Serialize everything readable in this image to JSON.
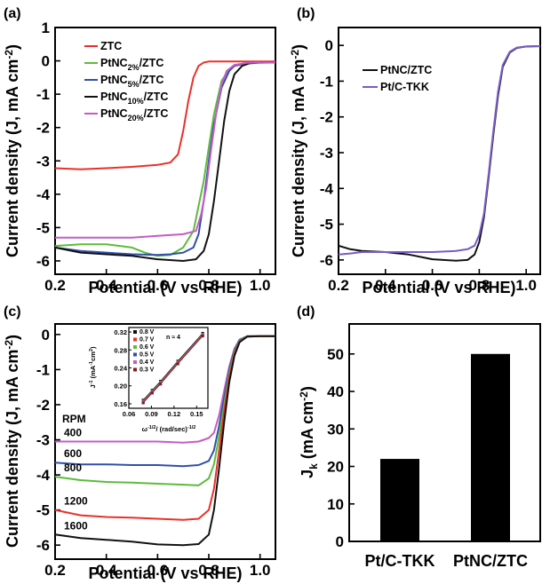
{
  "chart_data": [
    {
      "panel": "(a)",
      "type": "line",
      "xlabel": "Potential (V vs RHE)",
      "ylabel": "Current density (J, mA cm",
      "ylabel_sup": "-2",
      "ylabel_end": ")",
      "xlim": [
        0.2,
        1.06
      ],
      "ylim": [
        -6.4,
        1.0
      ],
      "xticks": [
        "0.2",
        "0.4",
        "0.6",
        "0.8",
        "1.0"
      ],
      "yticks": [
        "1",
        "0",
        "-1",
        "-2",
        "-3",
        "-4",
        "-5",
        "-6"
      ],
      "legend": "top-left",
      "series": [
        {
          "name": "ZTC",
          "label": "ZTC",
          "sub": "",
          "color": "#e8312a",
          "x": [
            0.2,
            0.3,
            0.4,
            0.5,
            0.6,
            0.65,
            0.68,
            0.7,
            0.72,
            0.74,
            0.76,
            0.78,
            0.8,
            0.85,
            0.9,
            1.0,
            1.06
          ],
          "y": [
            -3.22,
            -3.25,
            -3.22,
            -3.18,
            -3.12,
            -3.05,
            -2.8,
            -2.1,
            -1.2,
            -0.5,
            -0.15,
            -0.05,
            -0.02,
            -0.02,
            -0.02,
            -0.02,
            -0.02
          ]
        },
        {
          "name": "PtNC2%/ZTC",
          "label": "PtNC",
          "sub": "2%",
          "tail": "/ZTC",
          "color": "#5dbb3a",
          "x": [
            0.2,
            0.3,
            0.4,
            0.5,
            0.55,
            0.6,
            0.65,
            0.7,
            0.74,
            0.78,
            0.8,
            0.82,
            0.85,
            0.88,
            0.9,
            0.95,
            1.0,
            1.06
          ],
          "y": [
            -5.55,
            -5.5,
            -5.5,
            -5.6,
            -5.75,
            -5.85,
            -5.82,
            -5.6,
            -5.1,
            -3.6,
            -2.6,
            -1.6,
            -0.6,
            -0.25,
            -0.15,
            -0.08,
            -0.06,
            -0.05
          ]
        },
        {
          "name": "PtNC5%/ZTC",
          "label": "PtNC",
          "sub": "5%",
          "tail": "/ZTC",
          "color": "#3050a8",
          "x": [
            0.2,
            0.3,
            0.4,
            0.5,
            0.6,
            0.65,
            0.7,
            0.74,
            0.76,
            0.78,
            0.8,
            0.82,
            0.85,
            0.88,
            0.9,
            0.95,
            1.0,
            1.06
          ],
          "y": [
            -5.6,
            -5.7,
            -5.75,
            -5.8,
            -5.82,
            -5.8,
            -5.75,
            -5.6,
            -5.2,
            -4.2,
            -3.0,
            -1.9,
            -0.8,
            -0.3,
            -0.15,
            -0.06,
            -0.05,
            -0.05
          ]
        },
        {
          "name": "PtNC10%/ZTC",
          "label": "PtNC",
          "sub": "10%",
          "tail": "/ZTC",
          "color": "#111111",
          "x": [
            0.2,
            0.3,
            0.4,
            0.5,
            0.6,
            0.7,
            0.75,
            0.78,
            0.8,
            0.82,
            0.84,
            0.86,
            0.88,
            0.9,
            0.93,
            0.96,
            1.0,
            1.06
          ],
          "y": [
            -5.6,
            -5.75,
            -5.8,
            -5.85,
            -5.95,
            -6.0,
            -5.95,
            -5.7,
            -5.2,
            -4.2,
            -3.0,
            -1.8,
            -0.9,
            -0.4,
            -0.15,
            -0.07,
            -0.05,
            -0.05
          ]
        },
        {
          "name": "PtNC20%/ZTC",
          "label": "PtNC",
          "sub": "20%",
          "tail": "/ZTC",
          "color": "#c45cc8",
          "x": [
            0.2,
            0.3,
            0.4,
            0.5,
            0.6,
            0.7,
            0.75,
            0.77,
            0.79,
            0.81,
            0.83,
            0.85,
            0.87,
            0.9,
            0.95,
            1.0,
            1.06
          ],
          "y": [
            -5.3,
            -5.3,
            -5.3,
            -5.3,
            -5.25,
            -5.2,
            -5.1,
            -4.6,
            -3.8,
            -2.6,
            -1.5,
            -0.7,
            -0.3,
            -0.12,
            -0.06,
            -0.05,
            -0.05
          ]
        }
      ]
    },
    {
      "panel": "(b)",
      "type": "line",
      "xlabel": "Potential (V vs RHE)",
      "ylabel": "Current density (J, mA cm",
      "ylabel_sup": "-2",
      "ylabel_end": ")",
      "xlim": [
        0.2,
        1.06
      ],
      "ylim": [
        -6.4,
        0.5
      ],
      "xticks": [
        "0.2",
        "0.4",
        "0.6",
        "0.8",
        "1.0"
      ],
      "yticks": [
        "0",
        "-1",
        "-2",
        "-3",
        "-4",
        "-5",
        "-6"
      ],
      "legend": "top-left",
      "series": [
        {
          "name": "PtNC/ZTC",
          "label": "PtNC/ZTC",
          "sub": "",
          "color": "#111111",
          "x": [
            0.2,
            0.25,
            0.3,
            0.4,
            0.5,
            0.6,
            0.7,
            0.75,
            0.78,
            0.8,
            0.82,
            0.84,
            0.86,
            0.88,
            0.9,
            0.93,
            0.96,
            1.0,
            1.06
          ],
          "y": [
            -5.6,
            -5.7,
            -5.75,
            -5.78,
            -5.85,
            -5.98,
            -6.02,
            -6.0,
            -5.85,
            -5.5,
            -4.8,
            -3.7,
            -2.5,
            -1.4,
            -0.6,
            -0.2,
            -0.07,
            -0.03,
            -0.02
          ]
        },
        {
          "name": "Pt/C-TKK",
          "label": "Pt/C-TKK",
          "sub": "",
          "color": "#7a5bc4",
          "x": [
            0.2,
            0.25,
            0.3,
            0.4,
            0.5,
            0.6,
            0.7,
            0.75,
            0.78,
            0.8,
            0.82,
            0.84,
            0.86,
            0.88,
            0.9,
            0.93,
            0.96,
            1.0,
            1.06
          ],
          "y": [
            -5.85,
            -5.82,
            -5.78,
            -5.78,
            -5.78,
            -5.78,
            -5.75,
            -5.7,
            -5.6,
            -5.3,
            -4.7,
            -3.6,
            -2.4,
            -1.3,
            -0.55,
            -0.18,
            -0.06,
            -0.03,
            -0.02
          ]
        }
      ]
    },
    {
      "panel": "(c)",
      "type": "line",
      "xlabel": "Potential (V vs RHE)",
      "ylabel": "Current density (J, mA cm",
      "ylabel_sup": "-2",
      "ylabel_end": ")",
      "xlim": [
        0.2,
        1.06
      ],
      "ylim": [
        -6.4,
        0.3
      ],
      "xticks": [
        "0.2",
        "0.4",
        "0.6",
        "0.8",
        "1.0"
      ],
      "yticks": [
        "0",
        "-1",
        "-2",
        "-3",
        "-4",
        "-5",
        "-6"
      ],
      "rpm_title": "RPM",
      "series": [
        {
          "name": "400",
          "color": "#c45cc8",
          "x": [
            0.2,
            0.3,
            0.4,
            0.5,
            0.6,
            0.7,
            0.76,
            0.8,
            0.82,
            0.84,
            0.86,
            0.88,
            0.9,
            0.92,
            0.95,
            1.0,
            1.06
          ],
          "y": [
            -3.05,
            -3.05,
            -3.05,
            -3.05,
            -3.05,
            -3.08,
            -3.05,
            -2.95,
            -2.8,
            -2.3,
            -1.6,
            -0.9,
            -0.4,
            -0.15,
            -0.05,
            -0.05,
            -0.05
          ]
        },
        {
          "name": "600",
          "color": "#3050a8",
          "x": [
            0.2,
            0.3,
            0.4,
            0.5,
            0.6,
            0.7,
            0.76,
            0.8,
            0.82,
            0.84,
            0.86,
            0.88,
            0.9,
            0.92,
            0.95,
            1.0,
            1.06
          ],
          "y": [
            -3.65,
            -3.7,
            -3.7,
            -3.72,
            -3.72,
            -3.75,
            -3.72,
            -3.6,
            -3.3,
            -2.6,
            -1.8,
            -1.0,
            -0.45,
            -0.15,
            -0.05,
            -0.05,
            -0.05
          ]
        },
        {
          "name": "800",
          "color": "#5dbb3a",
          "x": [
            0.2,
            0.3,
            0.4,
            0.5,
            0.6,
            0.7,
            0.76,
            0.8,
            0.82,
            0.84,
            0.86,
            0.88,
            0.9,
            0.92,
            0.95,
            1.0,
            1.06
          ],
          "y": [
            -4.05,
            -4.15,
            -4.2,
            -4.22,
            -4.25,
            -4.28,
            -4.3,
            -4.1,
            -3.7,
            -2.9,
            -2.0,
            -1.1,
            -0.5,
            -0.18,
            -0.05,
            -0.05,
            -0.05
          ]
        },
        {
          "name": "1200",
          "color": "#e8312a",
          "x": [
            0.2,
            0.3,
            0.4,
            0.5,
            0.6,
            0.7,
            0.76,
            0.8,
            0.82,
            0.84,
            0.86,
            0.88,
            0.9,
            0.92,
            0.95,
            1.0,
            1.06
          ],
          "y": [
            -5.0,
            -5.15,
            -5.2,
            -5.22,
            -5.25,
            -5.28,
            -5.25,
            -5.0,
            -4.4,
            -3.3,
            -2.2,
            -1.2,
            -0.55,
            -0.2,
            -0.06,
            -0.05,
            -0.05
          ]
        },
        {
          "name": "1600",
          "color": "#111111",
          "x": [
            0.2,
            0.3,
            0.4,
            0.5,
            0.6,
            0.7,
            0.76,
            0.8,
            0.82,
            0.84,
            0.86,
            0.88,
            0.9,
            0.92,
            0.95,
            1.0,
            1.06
          ],
          "y": [
            -5.7,
            -5.8,
            -5.85,
            -5.9,
            -5.98,
            -6.0,
            -5.97,
            -5.7,
            -5.0,
            -3.8,
            -2.5,
            -1.35,
            -0.6,
            -0.22,
            -0.06,
            -0.05,
            -0.05
          ]
        }
      ],
      "inset": {
        "type": "scatter",
        "ylabel": "J",
        "ylabel_sup": "-1",
        "ylabel_mid": " (mA",
        "ylabel_sup2": "-1",
        "ylabel_end": "cm",
        "ylabel_sup3": "2",
        "ylabel_close": ")",
        "xlabel": "ω",
        "xlabel_sup": "-1/2",
        "xlabel_end": "/ (rad/sec)",
        "xlabel_sup2": "-1/2",
        "xlim": [
          0.06,
          0.165
        ],
        "ylim": [
          0.15,
          0.33
        ],
        "xticks": [
          "0.06",
          "0.09",
          "0.12",
          "0.15"
        ],
        "yticks": [
          "0.32",
          "0.28",
          "0.24",
          "0.20",
          "0.16"
        ],
        "annotation": "n ≈ 4",
        "x": [
          0.079,
          0.091,
          0.102,
          0.125,
          0.158
        ],
        "series": [
          {
            "name": "0.8 V",
            "color": "#111111",
            "y": [
              0.168,
              0.19,
              0.21,
              0.255,
              0.317
            ]
          },
          {
            "name": "0.7 V",
            "color": "#e8312a",
            "y": [
              0.166,
              0.188,
              0.208,
              0.253,
              0.315
            ]
          },
          {
            "name": "0.6 V",
            "color": "#5dbb3a",
            "y": [
              0.165,
              0.187,
              0.207,
              0.252,
              0.314
            ]
          },
          {
            "name": "0.5 V",
            "color": "#3050a8",
            "y": [
              0.164,
              0.186,
              0.206,
              0.251,
              0.313
            ]
          },
          {
            "name": "0.4 V",
            "color": "#c45cc8",
            "y": [
              0.163,
              0.185,
              0.205,
              0.25,
              0.312
            ]
          },
          {
            "name": "0.3 V",
            "color": "#8b1a1a",
            "y": [
              0.162,
              0.184,
              0.204,
              0.249,
              0.311
            ]
          }
        ]
      }
    },
    {
      "panel": "(d)",
      "type": "bar",
      "ylabel": "J",
      "ylabel_sub": "k",
      "ylabel_end": " (mA cm",
      "ylabel_sup": "-2",
      "ylabel_close": ")",
      "categories": [
        "Pt/C-TKK",
        "PtNC/ZTC"
      ],
      "values": [
        22,
        50
      ],
      "ylim": [
        0,
        58
      ],
      "yticks": [
        "0",
        "10",
        "20",
        "30",
        "40",
        "50"
      ],
      "color": "#000000"
    }
  ]
}
